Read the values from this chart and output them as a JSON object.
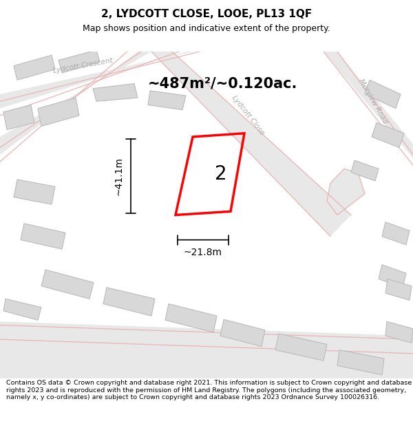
{
  "title": "2, LYDCOTT CLOSE, LOOE, PL13 1QF",
  "subtitle": "Map shows position and indicative extent of the property.",
  "area_text": "~487m²/~0.120ac.",
  "dim_vertical": "~41.1m",
  "dim_horizontal": "~21.8m",
  "plot_number": "2",
  "street_label_close": "Lydcott Close",
  "street_label_crescent": "Lydcott Crescent",
  "street_label_morview": "Morview Road",
  "copyright_text": "Contains OS data © Crown copyright and database right 2021. This information is subject to Crown copyright and database rights 2023 and is reproduced with the permission of HM Land Registry. The polygons (including the associated geometry, namely x, y co-ordinates) are subject to Crown copyright and database rights 2023 Ordnance Survey 100026316.",
  "bg_color": "#f5f5f5",
  "map_bg": "#f0f0f0",
  "road_color": "#e8b4b4",
  "road_fill": "#e0e0e0",
  "building_color": "#d8d8d8",
  "building_edge": "#c8c8c8",
  "property_color": "#ff0000",
  "property_fill": "none",
  "title_fontsize": 11,
  "subtitle_fontsize": 9,
  "area_fontsize": 16,
  "dim_fontsize": 10,
  "copyright_fontsize": 7.2
}
